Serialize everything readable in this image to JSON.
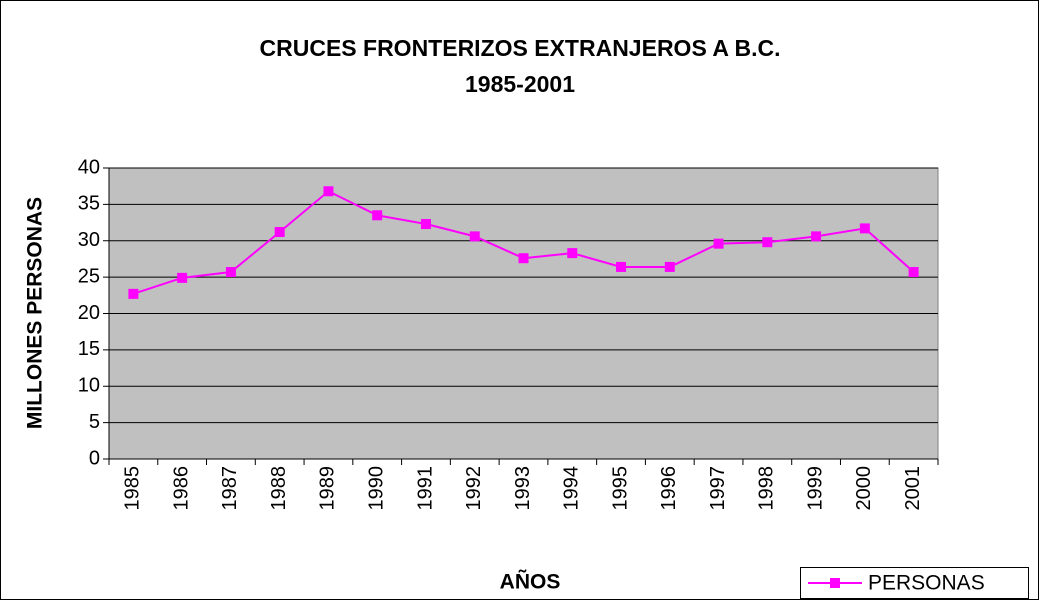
{
  "chart_data": {
    "type": "line",
    "title": "CRUCES FRONTERIZOS EXTRANJEROS A B.C. 1985-2001",
    "x_label": "AÑOS",
    "y_label": "MILLONES PERSONAS",
    "categories": [
      "1985",
      "1986",
      "1987",
      "1988",
      "1989",
      "1990",
      "1991",
      "1992",
      "1993",
      "1994",
      "1995",
      "1996",
      "1997",
      "1998",
      "1999",
      "2000",
      "2001"
    ],
    "series": [
      {
        "name": "PERSONAS",
        "color": "#ff00ff",
        "values": [
          22.7,
          24.9,
          25.7,
          31.2,
          36.8,
          33.5,
          32.3,
          30.6,
          27.6,
          28.3,
          26.4,
          26.4,
          29.6,
          29.8,
          30.6,
          31.7,
          25.7
        ]
      }
    ],
    "ylim": [
      0,
      40
    ],
    "yticks": [
      0,
      5,
      10,
      15,
      20,
      25,
      30,
      35,
      40
    ],
    "grid": true,
    "legend": "bottom-right",
    "plot_background": "#c0c0c0"
  }
}
